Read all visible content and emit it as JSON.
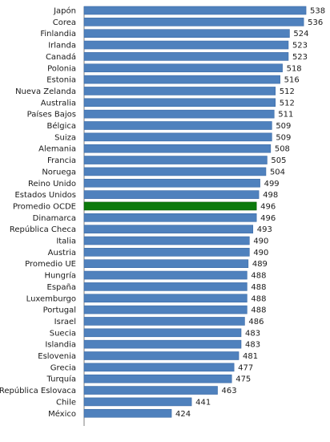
{
  "chart_data": {
    "type": "bar",
    "orientation": "horizontal",
    "title": "",
    "xlabel": "",
    "ylabel": "",
    "grid": false,
    "legend": "none",
    "categories": [
      "Japón",
      "Corea",
      "Finlandia",
      "Irlanda",
      "Canadá",
      "Polonia",
      "Estonia",
      "Nueva Zelanda",
      "Australia",
      "Países Bajos",
      "Bélgica",
      "Suiza",
      "Alemania",
      "Francia",
      "Noruega",
      "Reino Unido",
      "Estados Unidos",
      "Promedio OCDE",
      "Dinamarca",
      "República Checa",
      "Italia",
      "Austria",
      "Promedio UE",
      "Hungría",
      "España",
      "Luxemburgo",
      "Portugal",
      "Israel",
      "Suecia",
      "Islandia",
      "Eslovenia",
      "Grecia",
      "Turquía",
      "República Eslovaca",
      "Chile",
      "México"
    ],
    "values": [
      538,
      536,
      524,
      523,
      523,
      518,
      516,
      512,
      512,
      511,
      509,
      509,
      508,
      505,
      504,
      499,
      498,
      496,
      496,
      493,
      490,
      490,
      489,
      488,
      488,
      488,
      488,
      486,
      483,
      483,
      481,
      477,
      475,
      463,
      441,
      424
    ],
    "colors": {
      "bar": "#4f81bd",
      "bar_border": "#3a6aa6",
      "highlight": "#0b7a0b",
      "highlight_border": "#055a05"
    },
    "highlight_category": "Promedio OCDE",
    "xlim": [
      350,
      540
    ]
  }
}
